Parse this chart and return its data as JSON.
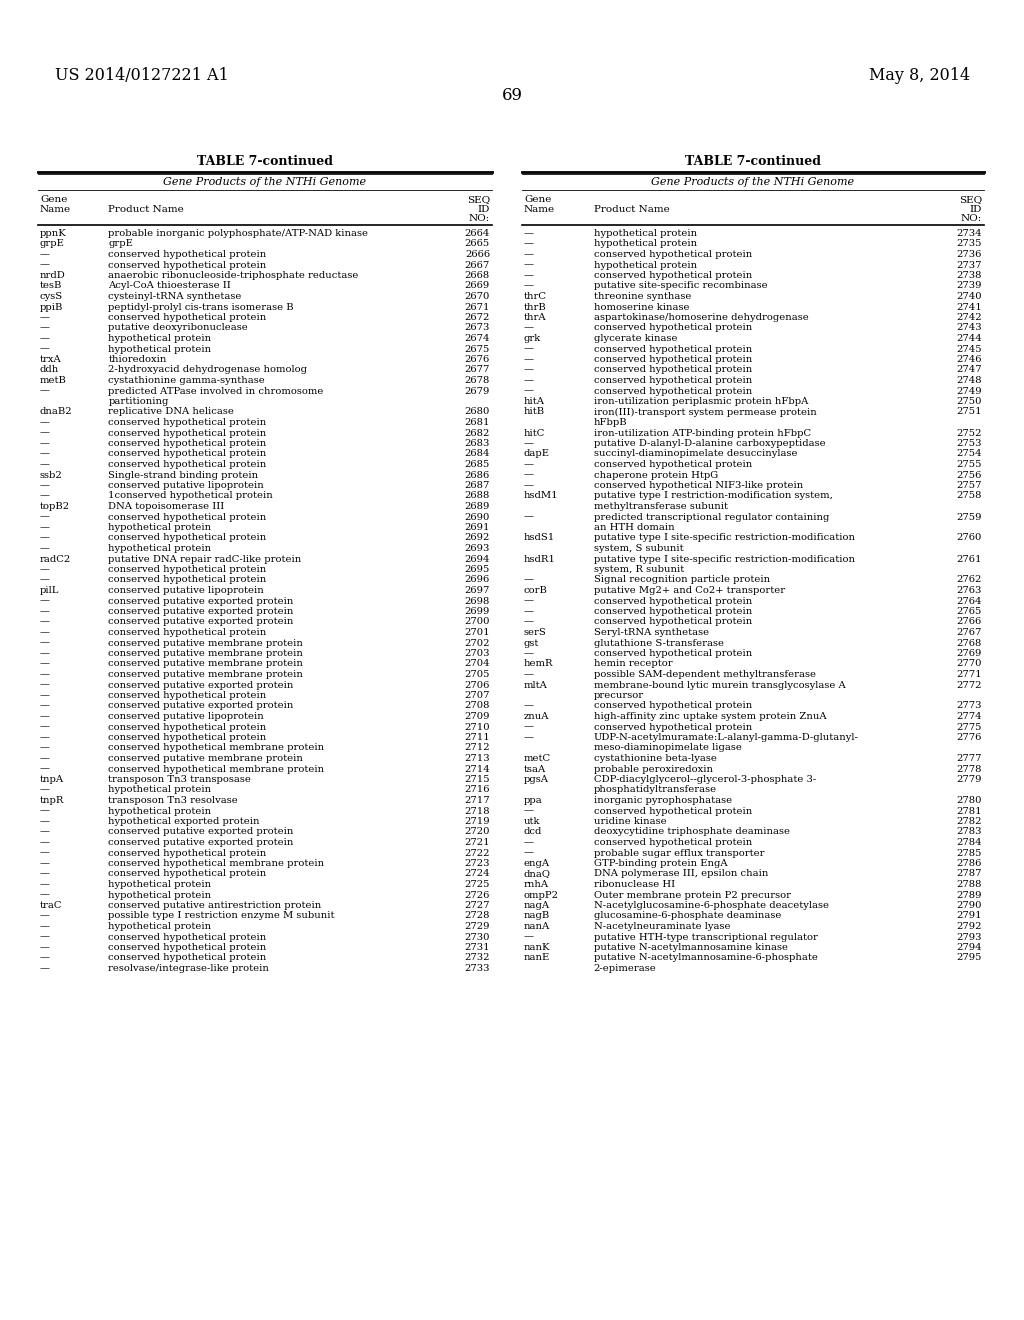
{
  "header_left": "US 2014/0127221 A1",
  "header_right": "May 8, 2014",
  "page_number": "69",
  "table_title": "TABLE 7-continued",
  "table_subtitle": "Gene Products of the NTHi Genome",
  "left_table": [
    [
      "ppnK",
      "probable inorganic polyphosphate/ATP-NAD kinase",
      "2664"
    ],
    [
      "grpE",
      "grpE",
      "2665"
    ],
    [
      "—",
      "conserved hypothetical protein",
      "2666"
    ],
    [
      "—",
      "conserved hypothetical protein",
      "2667"
    ],
    [
      "nrdD",
      "anaerobic ribonucleoside-triphosphate reductase",
      "2668"
    ],
    [
      "tesB",
      "Acyl-CoA thioesterase II",
      "2669"
    ],
    [
      "cysS",
      "cysteinyl-tRNA synthetase",
      "2670"
    ],
    [
      "ppiB",
      "peptidyl-prolyl cis-trans isomerase B",
      "2671"
    ],
    [
      "—",
      "conserved hypothetical protein",
      "2672"
    ],
    [
      "—",
      "putative deoxyribonuclease",
      "2673"
    ],
    [
      "—",
      "hypothetical protein",
      "2674"
    ],
    [
      "—",
      "hypothetical protein",
      "2675"
    ],
    [
      "trxA",
      "thioredoxin",
      "2676"
    ],
    [
      "ddh",
      "2-hydroxyacid dehydrogenase homolog",
      "2677"
    ],
    [
      "metB",
      "cystathionine gamma-synthase",
      "2678"
    ],
    [
      "—",
      "predicted ATPase involved in chromosome|partitioning",
      "2679"
    ],
    [
      "dnaB2",
      "replicative DNA helicase",
      "2680"
    ],
    [
      "—",
      "conserved hypothetical protein",
      "2681"
    ],
    [
      "—",
      "conserved hypothetical protein",
      "2682"
    ],
    [
      "—",
      "conserved hypothetical protein",
      "2683"
    ],
    [
      "—",
      "conserved hypothetical protein",
      "2684"
    ],
    [
      "—",
      "conserved hypothetical protein",
      "2685"
    ],
    [
      "ssb2",
      "Single-strand binding protein",
      "2686"
    ],
    [
      "—",
      "conserved putative lipoprotein",
      "2687"
    ],
    [
      "—",
      "1conserved hypothetical protein",
      "2688"
    ],
    [
      "topB2",
      "DNA topoisomerase III",
      "2689"
    ],
    [
      "—",
      "conserved hypothetical protein",
      "2690"
    ],
    [
      "—",
      "hypothetical protein",
      "2691"
    ],
    [
      "—",
      "conserved hypothetical protein",
      "2692"
    ],
    [
      "—",
      "hypothetical protein",
      "2693"
    ],
    [
      "radC2",
      "putative DNA repair radC-like protein",
      "2694"
    ],
    [
      "—",
      "conserved hypothetical protein",
      "2695"
    ],
    [
      "—",
      "conserved hypothetical protein",
      "2696"
    ],
    [
      "pilL",
      "conserved putative lipoprotein",
      "2697"
    ],
    [
      "—",
      "conserved putative exported protein",
      "2698"
    ],
    [
      "—",
      "conserved putative exported protein",
      "2699"
    ],
    [
      "—",
      "conserved putative exported protein",
      "2700"
    ],
    [
      "—",
      "conserved hypothetical protein",
      "2701"
    ],
    [
      "—",
      "conserved putative membrane protein",
      "2702"
    ],
    [
      "—",
      "conserved putative membrane protein",
      "2703"
    ],
    [
      "—",
      "conserved putative membrane protein",
      "2704"
    ],
    [
      "—",
      "conserved putative membrane protein",
      "2705"
    ],
    [
      "—",
      "conserved putative exported protein",
      "2706"
    ],
    [
      "—",
      "conserved hypothetical protein",
      "2707"
    ],
    [
      "—",
      "conserved putative exported protein",
      "2708"
    ],
    [
      "—",
      "conserved putative lipoprotein",
      "2709"
    ],
    [
      "—",
      "conserved hypothetical protein",
      "2710"
    ],
    [
      "—",
      "conserved hypothetical protein",
      "2711"
    ],
    [
      "—",
      "conserved hypothetical membrane protein",
      "2712"
    ],
    [
      "—",
      "conserved putative membrane protein",
      "2713"
    ],
    [
      "—",
      "conserved hypothetical membrane protein",
      "2714"
    ],
    [
      "tnpA",
      "transposon Tn3 transposase",
      "2715"
    ],
    [
      "—",
      "hypothetical protein",
      "2716"
    ],
    [
      "tnpR",
      "transposon Tn3 resolvase",
      "2717"
    ],
    [
      "—",
      "hypothetical protein",
      "2718"
    ],
    [
      "—",
      "hypothetical exported protein",
      "2719"
    ],
    [
      "—",
      "conserved putative exported protein",
      "2720"
    ],
    [
      "—",
      "conserved putative exported protein",
      "2721"
    ],
    [
      "—",
      "conserved hypothetical protein",
      "2722"
    ],
    [
      "—",
      "conserved hypothetical membrane protein",
      "2723"
    ],
    [
      "—",
      "conserved hypothetical protein",
      "2724"
    ],
    [
      "—",
      "hypothetical protein",
      "2725"
    ],
    [
      "—",
      "hypothetical protein",
      "2726"
    ],
    [
      "traC",
      "conserved putative antirestriction protein",
      "2727"
    ],
    [
      "—",
      "possible type I restriction enzyme M subunit",
      "2728"
    ],
    [
      "—",
      "hypothetical protein",
      "2729"
    ],
    [
      "—",
      "conserved hypothetical protein",
      "2730"
    ],
    [
      "—",
      "conserved hypothetical protein",
      "2731"
    ],
    [
      "—",
      "conserved hypothetical protein",
      "2732"
    ],
    [
      "—",
      "resolvase/integrase-like protein",
      "2733"
    ]
  ],
  "right_table": [
    [
      "—",
      "hypothetical protein",
      "2734"
    ],
    [
      "—",
      "hypothetical protein",
      "2735"
    ],
    [
      "—",
      "conserved hypothetical protein",
      "2736"
    ],
    [
      "—",
      "hypothetical protein",
      "2737"
    ],
    [
      "—",
      "conserved hypothetical protein",
      "2738"
    ],
    [
      "—",
      "putative site-specific recombinase",
      "2739"
    ],
    [
      "thrC",
      "threonine synthase",
      "2740"
    ],
    [
      "thrB",
      "homoserine kinase",
      "2741"
    ],
    [
      "thrA",
      "aspartokinase/homoserine dehydrogenase",
      "2742"
    ],
    [
      "—",
      "conserved hypothetical protein",
      "2743"
    ],
    [
      "grk",
      "glycerate kinase",
      "2744"
    ],
    [
      "—",
      "conserved hypothetical protein",
      "2745"
    ],
    [
      "—",
      "conserved hypothetical protein",
      "2746"
    ],
    [
      "—",
      "conserved hypothetical protein",
      "2747"
    ],
    [
      "—",
      "conserved hypothetical protein",
      "2748"
    ],
    [
      "—",
      "conserved hypothetical protein",
      "2749"
    ],
    [
      "hitA",
      "iron-utilization periplasmic protein hFbpA",
      "2750"
    ],
    [
      "hitB",
      "iron(III)-transport system permease protein|hFbpB",
      "2751"
    ],
    [
      "hitC",
      "iron-utilization ATP-binding protein hFbpC",
      "2752"
    ],
    [
      "—",
      "putative D-alanyl-D-alanine carboxypeptidase",
      "2753"
    ],
    [
      "dapE",
      "succinyl-diaminopimelate desuccinylase",
      "2754"
    ],
    [
      "—",
      "conserved hypothetical protein",
      "2755"
    ],
    [
      "—",
      "chaperone protein HtpG",
      "2756"
    ],
    [
      "—",
      "conserved hypothetical NIF3-like protein",
      "2757"
    ],
    [
      "hsdM1",
      "putative type I restriction-modification system,|methyltransferase subunit",
      "2758"
    ],
    [
      "—",
      "predicted transcriptional regulator containing|an HTH domain",
      "2759"
    ],
    [
      "hsdS1",
      "putative type I site-specific restriction-modification|system, S subunit",
      "2760"
    ],
    [
      "hsdR1",
      "putative type I site-specific restriction-modification|system, R subunit",
      "2761"
    ],
    [
      "—",
      "Signal recognition particle protein",
      "2762"
    ],
    [
      "corB",
      "putative Mg2+ and Co2+ transporter",
      "2763"
    ],
    [
      "—",
      "conserved hypothetical protein",
      "2764"
    ],
    [
      "—",
      "conserved hypothetical protein",
      "2765"
    ],
    [
      "—",
      "conserved hypothetical protein",
      "2766"
    ],
    [
      "serS",
      "Seryl-tRNA synthetase",
      "2767"
    ],
    [
      "gst",
      "glutathione S-transferase",
      "2768"
    ],
    [
      "—",
      "conserved hypothetical protein",
      "2769"
    ],
    [
      "hemR",
      "hemin receptor",
      "2770"
    ],
    [
      "—",
      "possible SAM-dependent methyltransferase",
      "2771"
    ],
    [
      "mltA",
      "membrane-bound lytic murein transglycosylase A|precursor",
      "2772"
    ],
    [
      "—",
      "conserved hypothetical protein",
      "2773"
    ],
    [
      "znuA",
      "high-affinity zinc uptake system protein ZnuA",
      "2774"
    ],
    [
      "—",
      "conserved hypothetical protein",
      "2775"
    ],
    [
      "—",
      "UDP-N-acetylmuramate:L-alanyl-gamma-D-glutanyl-|meso-diaminopimelate ligase",
      "2776"
    ],
    [
      "metC",
      "cystathionine beta-lyase",
      "2777"
    ],
    [
      "tsaA",
      "probable peroxiredoxin",
      "2778"
    ],
    [
      "pgsA",
      "CDP-diacylglycerol--glycerol-3-phosphate 3-|phosphatidyltransferase",
      "2779"
    ],
    [
      "ppa",
      "inorganic pyrophosphatase",
      "2780"
    ],
    [
      "—",
      "conserved hypothetical protein",
      "2781"
    ],
    [
      "utk",
      "uridine kinase",
      "2782"
    ],
    [
      "dcd",
      "deoxycytidine triphosphate deaminase",
      "2783"
    ],
    [
      "—",
      "conserved hypothetical protein",
      "2784"
    ],
    [
      "—",
      "probable sugar efflux transporter",
      "2785"
    ],
    [
      "engA",
      "GTP-binding protein EngA",
      "2786"
    ],
    [
      "dnaQ",
      "DNA polymerase III, epsilon chain",
      "2787"
    ],
    [
      "rnhA",
      "ribonuclease HI",
      "2788"
    ],
    [
      "ompP2",
      "Outer membrane protein P2 precursor",
      "2789"
    ],
    [
      "nagA",
      "N-acetylglucosamine-6-phosphate deacetylase",
      "2790"
    ],
    [
      "nagB",
      "glucosamine-6-phosphate deaminase",
      "2791"
    ],
    [
      "nanA",
      "N-acetylneuraminate lyase",
      "2792"
    ],
    [
      "—",
      "putative HTH-type transcriptional regulator",
      "2793"
    ],
    [
      "nanK",
      "putative N-acetylmannosamine kinase",
      "2794"
    ],
    [
      "nanE",
      "putative N-acetylmannosamine-6-phosphate|2-epimerase",
      "2795"
    ]
  ]
}
